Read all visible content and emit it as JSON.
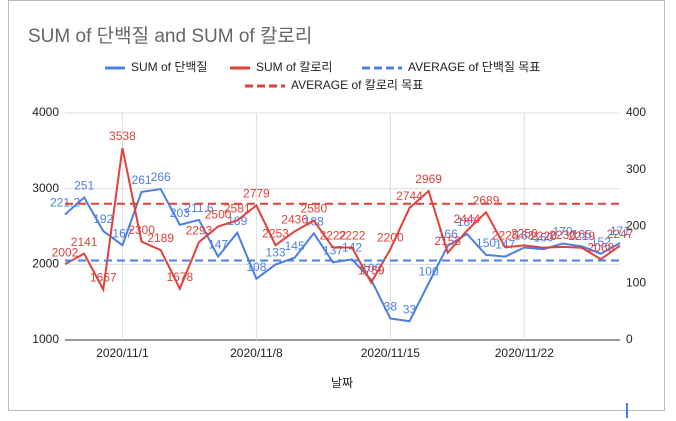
{
  "chart_data": {
    "type": "line",
    "title": "SUM of 단백질 and SUM of 칼로리",
    "x_label": "날짜",
    "categories": [
      null,
      null,
      null,
      "2020/11/1",
      null,
      null,
      null,
      null,
      null,
      null,
      "2020/11/8",
      null,
      null,
      null,
      null,
      null,
      null,
      "2020/11/15",
      null,
      null,
      null,
      null,
      null,
      null,
      "2020/11/22",
      null,
      null,
      null,
      null,
      null
    ],
    "series": [
      {
        "name": "SUM of 단백질",
        "color": "#4a7fe3",
        "axis": "y2",
        "labels": true,
        "values": [
          221.2,
          251,
          192,
          167,
          261,
          266,
          203,
          211.6,
          147,
          189,
          108,
          133,
          145,
          188,
          137,
          142,
          106,
          38,
          33,
          100,
          166,
          187,
          150,
          147,
          163,
          160,
          170,
          165,
          152,
          171
        ]
      },
      {
        "name": "SUM of 칼로리",
        "color": "#e0413a",
        "labels": true,
        "values": [
          2002,
          2141,
          1667,
          3538,
          2300,
          2189,
          1678,
          2293,
          2500,
          2581,
          2779,
          2253,
          2436,
          2580,
          2222,
          2222,
          1759,
          2200,
          2744,
          2969,
          2153,
          2444,
          2689,
          2225,
          2250,
          2220,
          2230,
          2219,
          2068,
          2247
        ]
      },
      {
        "name": "AVERAGE of 단백질 목표",
        "color": "#4a7fe3",
        "axis": "y2",
        "dashed": true,
        "values": [
          140,
          140,
          140,
          140,
          140,
          140,
          140,
          140,
          140,
          140,
          140,
          140,
          140,
          140,
          140,
          140,
          140,
          140,
          140,
          140,
          140,
          140,
          140,
          140,
          140,
          140,
          140,
          140,
          140,
          140
        ]
      },
      {
        "name": "AVERAGE of 칼로리 목표",
        "color": "#e0413a",
        "dashed": true,
        "values": [
          2800,
          2800,
          2800,
          2800,
          2800,
          2800,
          2800,
          2800,
          2800,
          2800,
          2800,
          2800,
          2800,
          2800,
          2800,
          2800,
          2800,
          2800,
          2800,
          2800,
          2800,
          2800,
          2800,
          2800,
          2800,
          2800,
          2800,
          2800,
          2800,
          2800
        ]
      }
    ],
    "ylim": [
      1000,
      4000
    ],
    "yticks": [
      1000,
      2000,
      3000,
      4000
    ],
    "y2lim": [
      0,
      400
    ],
    "y2ticks": [
      0,
      100,
      200,
      300,
      400
    ],
    "grid": true
  }
}
